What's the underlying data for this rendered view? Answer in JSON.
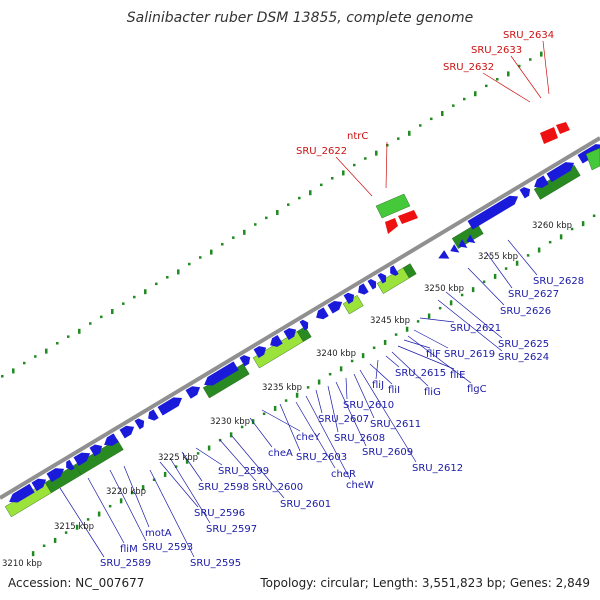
{
  "title": "Salinibacter ruber DSM 13855, complete genome",
  "footer": {
    "accession": "Accession: NC_007677",
    "summary": "Topology: circular; Length: 3,551,823 bp; Genes: 2,849"
  },
  "colors": {
    "cds": "#1a1adb",
    "rna": "#ee1111",
    "gc_dark": "#2a8a22",
    "gc_light": "#9be33a",
    "backbone": "#909090",
    "label_blue": "#1a1aa8",
    "label_red": "#cc1111",
    "dots": "#1f8a1f"
  },
  "ticks": [
    "3210 kbp",
    "3215 kbp",
    "3220 kbp",
    "3225 kbp",
    "3230 kbp",
    "3235 kbp",
    "3240 kbp",
    "3245 kbp",
    "3250 kbp",
    "3255 kbp",
    "3260 kbp"
  ],
  "red_labels": [
    "SRU_2622",
    "ntrC",
    "SRU_2632",
    "SRU_2633",
    "SRU_2634"
  ],
  "blue_labels": [
    "SRU_2589",
    "fliM",
    "SRU_2593",
    "motA",
    "SRU_2595",
    "SRU_2596",
    "SRU_2597",
    "SRU_2598",
    "SRU_2599",
    "SRU_2600",
    "SRU_2601",
    "cheA",
    "cheY",
    "SRU_2603",
    "cheR",
    "cheW",
    "SRU_2607",
    "SRU_2608",
    "SRU_2609",
    "SRU_2610",
    "SRU_2611",
    "SRU_2612",
    "fliI",
    "fliJ",
    "fliG",
    "SRU_2615",
    "fliE",
    "fliF",
    "flgC",
    "SRU_2619",
    "SRU_2621",
    "SRU_2624",
    "SRU_2625",
    "SRU_2626",
    "SRU_2627",
    "SRU_2628"
  ]
}
